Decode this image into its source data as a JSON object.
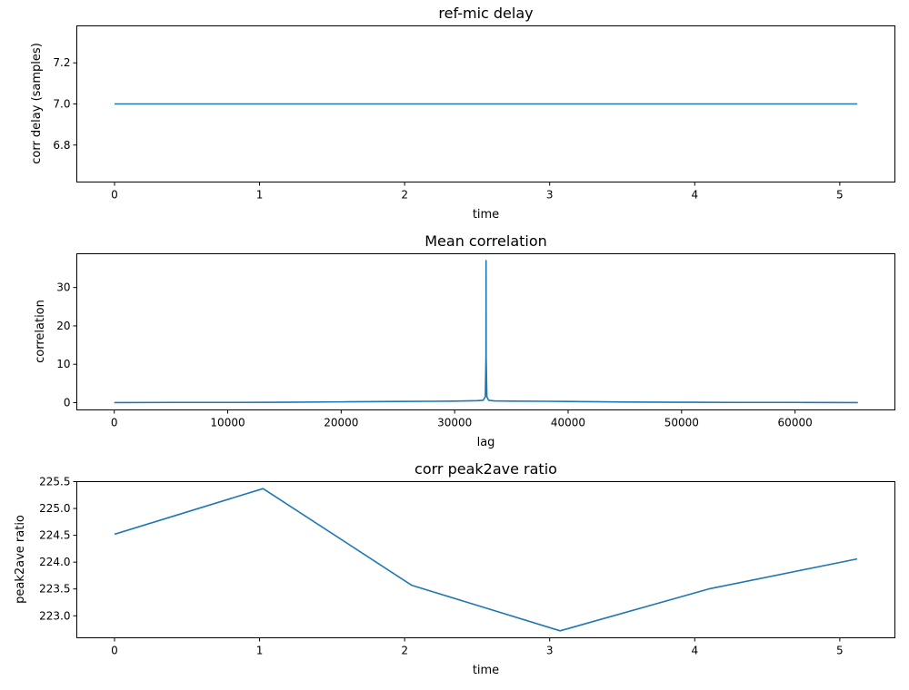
{
  "colors": {
    "series": "#1f77b4",
    "axes": "#000000",
    "background": "#ffffff"
  },
  "chart_data": [
    {
      "type": "line",
      "title": "ref-mic delay",
      "xlabel": "time",
      "ylabel": "corr delay (samples)",
      "xlim": [
        -0.26,
        5.38
      ],
      "ylim": [
        6.62,
        7.38
      ],
      "xticks": [
        0,
        1,
        2,
        3,
        4,
        5
      ],
      "xtick_labels": [
        "0",
        "1",
        "2",
        "3",
        "4",
        "5"
      ],
      "yticks": [
        6.8,
        7.0,
        7.2
      ],
      "ytick_labels": [
        "6.8",
        "7.0",
        "7.2"
      ],
      "grid": false,
      "series": [
        {
          "x": [
            0,
            5.12
          ],
          "y": [
            7.0,
            7.0
          ]
        }
      ]
    },
    {
      "type": "line",
      "title": "Mean correlation",
      "xlabel": "lag",
      "ylabel": "correlation",
      "xlim": [
        -3300,
        68800
      ],
      "ylim": [
        -1.9,
        38.8
      ],
      "xticks": [
        0,
        10000,
        20000,
        30000,
        40000,
        50000,
        60000
      ],
      "xtick_labels": [
        "0",
        "10000",
        "20000",
        "30000",
        "40000",
        "50000",
        "60000"
      ],
      "yticks": [
        0,
        10,
        20,
        30
      ],
      "ytick_labels": [
        "0",
        "10",
        "20",
        "30"
      ],
      "grid": false,
      "series": [
        {
          "x": [
            0,
            5000,
            10000,
            15000,
            20000,
            22000,
            25000,
            28000,
            30000,
            31000,
            32000,
            32500,
            32700,
            32760,
            32768,
            32776,
            32840,
            33000,
            33500,
            35000,
            38000,
            40000,
            42000,
            45000,
            50000,
            55000,
            60000,
            65535
          ],
          "y": [
            0.0,
            0.05,
            0.05,
            0.1,
            0.2,
            0.25,
            0.3,
            0.35,
            0.4,
            0.45,
            0.5,
            0.6,
            1.5,
            12.0,
            37.0,
            12.0,
            1.5,
            0.6,
            0.45,
            0.4,
            0.35,
            0.3,
            0.25,
            0.15,
            0.1,
            0.05,
            0.05,
            0.0
          ]
        }
      ]
    },
    {
      "type": "line",
      "title": "corr peak2ave ratio",
      "xlabel": "time",
      "ylabel": "peak2ave ratio",
      "xlim": [
        -0.26,
        5.38
      ],
      "ylim": [
        222.59,
        225.5
      ],
      "xticks": [
        0,
        1,
        2,
        3,
        4,
        5
      ],
      "xtick_labels": [
        "0",
        "1",
        "2",
        "3",
        "4",
        "5"
      ],
      "yticks": [
        223.0,
        223.5,
        224.0,
        224.5,
        225.0,
        225.5
      ],
      "ytick_labels": [
        "223.0",
        "223.5",
        "224.0",
        "224.5",
        "225.0",
        "225.5"
      ],
      "grid": false,
      "series": [
        {
          "x": [
            0,
            1.024,
            2.048,
            3.072,
            4.096,
            5.12
          ],
          "y": [
            224.52,
            225.37,
            223.57,
            222.72,
            223.5,
            224.06
          ]
        }
      ]
    }
  ]
}
